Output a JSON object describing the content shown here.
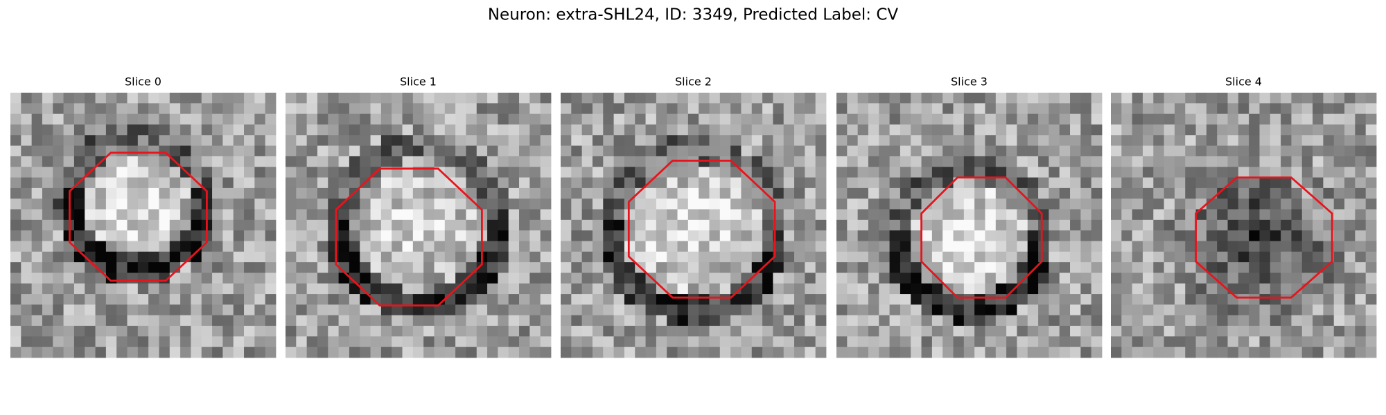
{
  "header": {
    "title": "Neuron: extra-SHL24, ID: 3349, Predicted Label: CV"
  },
  "panels": [
    {
      "title": "Slice 0"
    },
    {
      "title": "Slice 1"
    },
    {
      "title": "Slice 2"
    },
    {
      "title": "Slice 3"
    },
    {
      "title": "Slice 4"
    }
  ]
}
